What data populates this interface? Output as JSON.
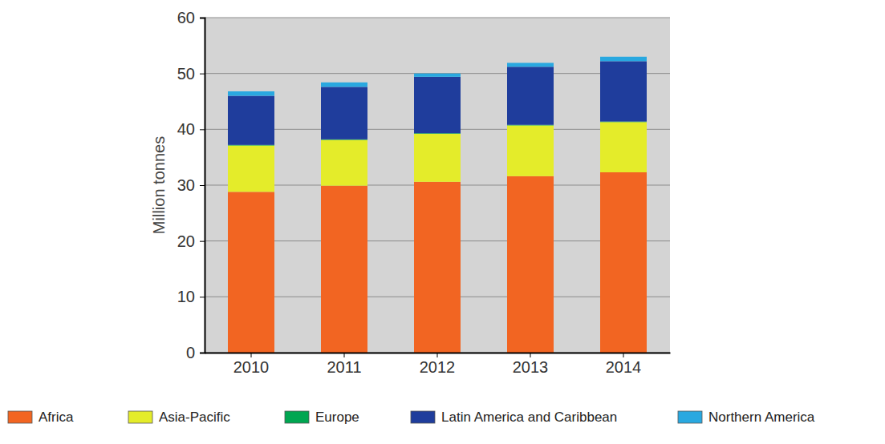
{
  "chart_data": {
    "type": "bar",
    "stacked": true,
    "grid": true,
    "legend": "bottom",
    "y_label": "Million tonnes",
    "categories": [
      "2010",
      "2011",
      "2012",
      "2013",
      "2014"
    ],
    "ylim": [
      0,
      60
    ],
    "yticks": [
      0,
      10,
      20,
      30,
      40,
      50,
      60
    ],
    "series": [
      {
        "name": "Africa",
        "color": "#f26522",
        "values": [
          28.8,
          29.9,
          30.6,
          31.6,
          32.3
        ]
      },
      {
        "name": "Asia-Pacific",
        "color": "#e4ec2a",
        "values": [
          8.3,
          8.2,
          8.6,
          9.1,
          9.0
        ]
      },
      {
        "name": "Europe",
        "color": "#00a651",
        "values": [
          0.1,
          0.1,
          0.1,
          0.1,
          0.1
        ]
      },
      {
        "name": "Latin America and Caribbean",
        "color": "#1f3d9c",
        "values": [
          8.8,
          9.4,
          10.1,
          10.4,
          10.8
        ]
      },
      {
        "name": "Northern America",
        "color": "#29a8e0",
        "values": [
          0.8,
          0.8,
          0.6,
          0.7,
          0.8
        ]
      }
    ]
  }
}
